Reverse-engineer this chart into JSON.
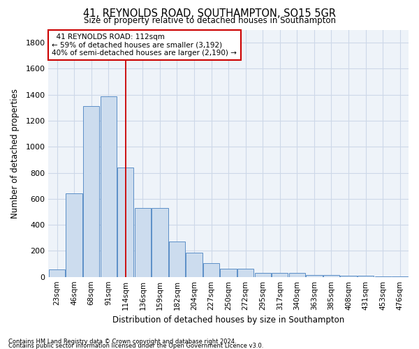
{
  "title": "41, REYNOLDS ROAD, SOUTHAMPTON, SO15 5GR",
  "subtitle": "Size of property relative to detached houses in Southampton",
  "xlabel": "Distribution of detached houses by size in Southampton",
  "ylabel": "Number of detached properties",
  "footnote1": "Contains HM Land Registry data © Crown copyright and database right 2024.",
  "footnote2": "Contains public sector information licensed under the Open Government Licence v3.0.",
  "annotation_title": "41 REYNOLDS ROAD: 112sqm",
  "annotation_line1": "← 59% of detached houses are smaller (3,192)",
  "annotation_line2": "40% of semi-detached houses are larger (2,190) →",
  "bar_color": "#ccdcee",
  "bar_edge_color": "#5b8fc7",
  "vline_color": "#cc0000",
  "annotation_box_edgecolor": "#cc0000",
  "grid_color": "#cdd8e8",
  "bg_color": "#eef3f9",
  "categories": [
    "23sqm",
    "46sqm",
    "68sqm",
    "91sqm",
    "114sqm",
    "136sqm",
    "159sqm",
    "182sqm",
    "204sqm",
    "227sqm",
    "250sqm",
    "272sqm",
    "295sqm",
    "317sqm",
    "340sqm",
    "363sqm",
    "385sqm",
    "408sqm",
    "431sqm",
    "453sqm",
    "476sqm"
  ],
  "values": [
    55,
    640,
    1310,
    1390,
    840,
    530,
    530,
    270,
    185,
    105,
    65,
    65,
    32,
    30,
    28,
    17,
    12,
    10,
    7,
    5,
    5
  ],
  "vline_index": 4,
  "ylim": [
    0,
    1900
  ],
  "yticks": [
    0,
    200,
    400,
    600,
    800,
    1000,
    1200,
    1400,
    1600,
    1800
  ]
}
